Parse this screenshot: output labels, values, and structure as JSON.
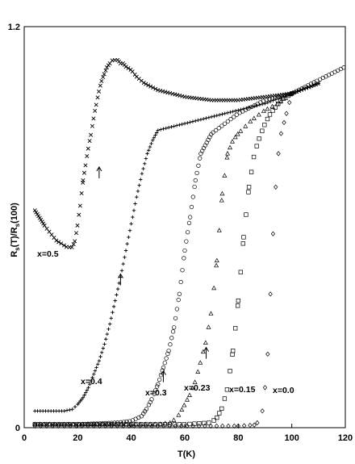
{
  "chart_data": {
    "type": "scatter",
    "xlabel": "T(K)",
    "ylabel": "R_s(T)/R_s(100)",
    "ylabel_parts": {
      "a": "R",
      "sub1": "s",
      "b": "(T)/R",
      "sub2": "s",
      "c": "(100)"
    },
    "xlim": [
      0,
      120
    ],
    "ylim": [
      0,
      1.2
    ],
    "x_ticks": [
      "0",
      "20",
      "40",
      "60",
      "80",
      "100",
      "120"
    ],
    "y_ticks": [
      "0",
      "1.2"
    ],
    "grid": false,
    "legend": "none",
    "series": [
      {
        "name": "x=0.5",
        "marker": "x",
        "x": [
          4,
          8,
          12,
          14,
          16,
          18,
          19,
          20,
          21,
          22,
          23,
          24,
          25,
          26,
          27,
          28,
          29,
          30,
          31,
          32,
          33,
          34,
          35,
          36,
          37,
          38,
          40,
          42,
          45,
          50,
          55,
          60,
          65,
          70,
          80,
          90,
          100,
          110
        ],
        "y": [
          0.65,
          0.6,
          0.56,
          0.55,
          0.54,
          0.54,
          0.56,
          0.61,
          0.67,
          0.74,
          0.79,
          0.84,
          0.88,
          0.93,
          0.97,
          1.01,
          1.04,
          1.06,
          1.08,
          1.09,
          1.1,
          1.1,
          1.1,
          1.09,
          1.09,
          1.08,
          1.07,
          1.05,
          1.03,
          1.01,
          1.0,
          0.99,
          0.985,
          0.98,
          0.98,
          0.99,
          1.0,
          1.03
        ]
      },
      {
        "name": "x=0.4",
        "marker": "+",
        "x": [
          4,
          10,
          15,
          18,
          20,
          22,
          24,
          26,
          28,
          30,
          32,
          34,
          36,
          38,
          40,
          42,
          44,
          46,
          48,
          50,
          55,
          60,
          65,
          70,
          80,
          90,
          100,
          110
        ],
        "y": [
          0.05,
          0.05,
          0.05,
          0.055,
          0.07,
          0.09,
          0.12,
          0.16,
          0.2,
          0.25,
          0.31,
          0.38,
          0.45,
          0.53,
          0.61,
          0.69,
          0.76,
          0.82,
          0.86,
          0.89,
          0.9,
          0.91,
          0.92,
          0.93,
          0.95,
          0.97,
          1.0,
          1.03
        ]
      },
      {
        "name": "x=0.3",
        "marker": "o",
        "x": [
          4,
          20,
          35,
          40,
          44,
          46,
          48,
          50,
          52,
          54,
          56,
          58,
          60,
          62,
          64,
          66,
          70,
          75,
          80,
          85,
          90,
          95,
          100,
          105,
          110,
          115,
          120
        ],
        "y": [
          0.01,
          0.01,
          0.015,
          0.02,
          0.035,
          0.06,
          0.09,
          0.13,
          0.18,
          0.23,
          0.3,
          0.4,
          0.53,
          0.63,
          0.74,
          0.82,
          0.88,
          0.91,
          0.94,
          0.96,
          0.98,
          0.99,
          1.0,
          1.02,
          1.04,
          1.06,
          1.08
        ]
      },
      {
        "name": "x=0.23",
        "marker": "triangle",
        "x": [
          4,
          30,
          50,
          55,
          58,
          60,
          62,
          64,
          66,
          68,
          70,
          72,
          74,
          76,
          78,
          80,
          85,
          90,
          95,
          100
        ],
        "y": [
          0.01,
          0.01,
          0.01,
          0.015,
          0.04,
          0.07,
          0.1,
          0.14,
          0.2,
          0.26,
          0.35,
          0.5,
          0.7,
          0.82,
          0.86,
          0.88,
          0.92,
          0.95,
          0.97,
          1.0
        ]
      },
      {
        "name": "x=0.15",
        "marker": "square",
        "x": [
          4,
          40,
          60,
          70,
          72,
          74,
          76,
          78,
          80,
          82,
          84,
          86,
          88,
          90,
          92,
          94,
          96,
          100
        ],
        "y": [
          0.01,
          0.01,
          0.01,
          0.015,
          0.03,
          0.06,
          0.12,
          0.23,
          0.38,
          0.57,
          0.72,
          0.82,
          0.87,
          0.91,
          0.94,
          0.96,
          0.98,
          1.0
        ]
      },
      {
        "name": "x=0.0",
        "marker": "diamond",
        "x": [
          4,
          40,
          80,
          86,
          88,
          89,
          90,
          91,
          92,
          93,
          94,
          95,
          96,
          98,
          100
        ],
        "y": [
          0.005,
          0.005,
          0.005,
          0.008,
          0.02,
          0.05,
          0.12,
          0.22,
          0.4,
          0.58,
          0.72,
          0.82,
          0.88,
          0.94,
          1.0
        ]
      }
    ],
    "annotations": [
      {
        "text": "x=0.5"
      },
      {
        "text": "x=0.4"
      },
      {
        "text": "x=0.3"
      },
      {
        "text": "x=0.23"
      },
      {
        "text": "x=0.15"
      },
      {
        "text": "x=0.0"
      }
    ],
    "arrows": [
      {
        "x": 28,
        "y": 0.78
      },
      {
        "x": 36,
        "y": 0.46
      },
      {
        "x": 52,
        "y": 0.17
      },
      {
        "x": 68,
        "y": 0.24
      }
    ]
  }
}
